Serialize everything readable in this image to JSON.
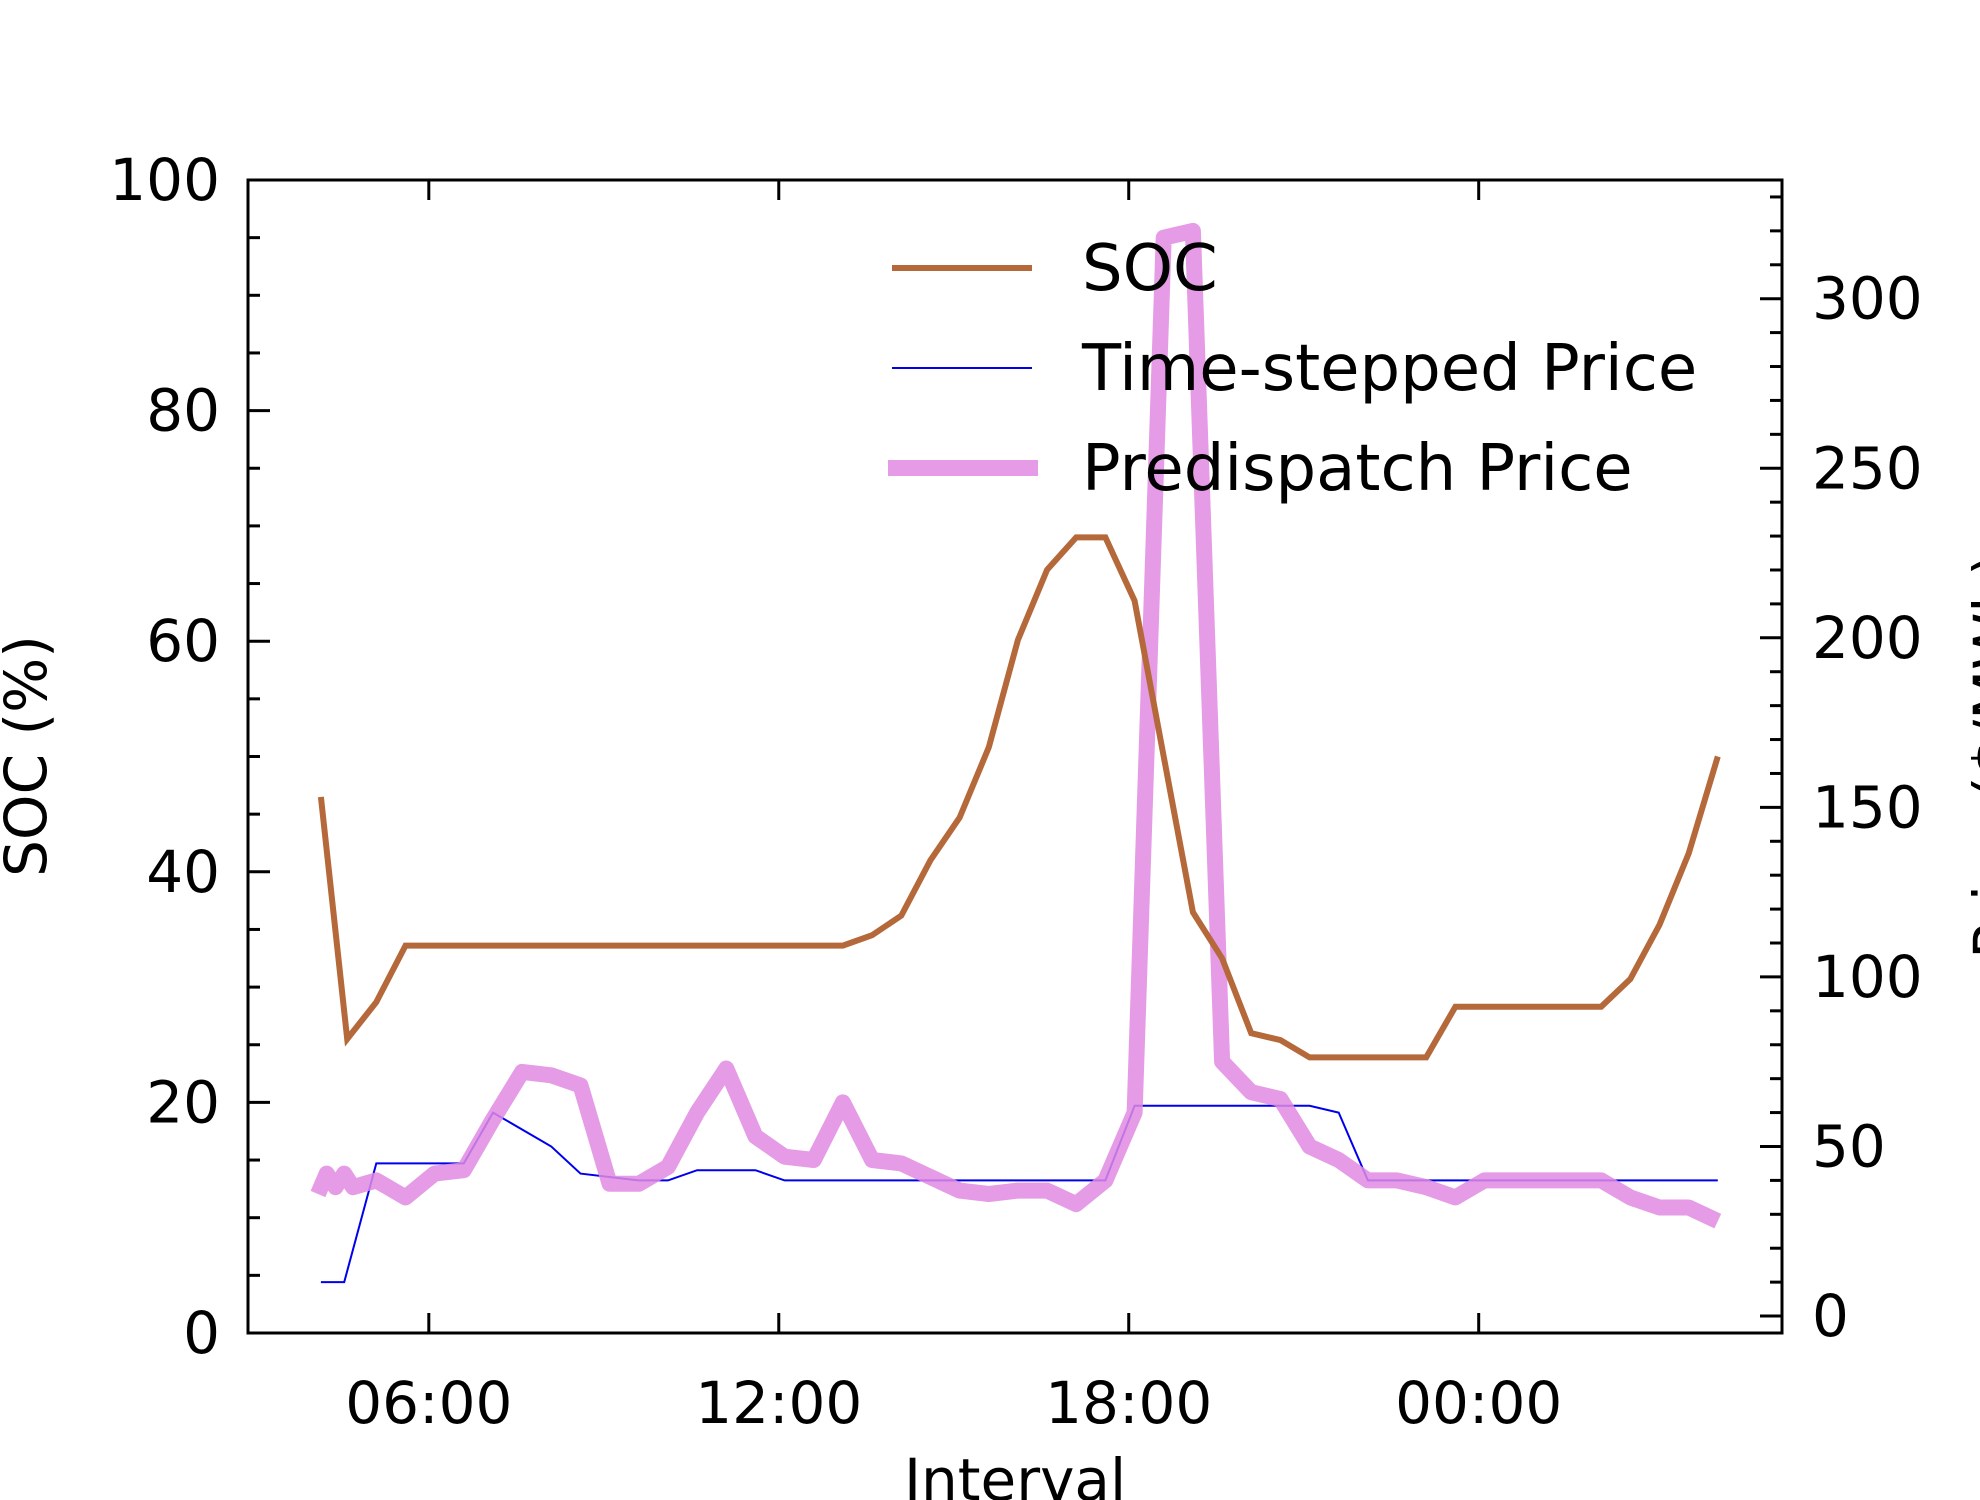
{
  "chart_data": {
    "type": "line",
    "title": "",
    "xlabel": "Interval",
    "ylabel_left": "SOC (%)",
    "ylabel_right": "Price ($/MWh)",
    "x_unit": "hours from 00:00 of day 1",
    "xlim": [
      2.9,
      29.2
    ],
    "ylim_left": [
      0,
      100
    ],
    "ylim_right": [
      -5,
      335
    ],
    "x_ticks": [
      {
        "x": 6,
        "label": "06:00"
      },
      {
        "x": 12,
        "label": "12:00"
      },
      {
        "x": 18,
        "label": "18:00"
      },
      {
        "x": 24,
        "label": "00:00"
      }
    ],
    "y_left_ticks": [
      0,
      20,
      40,
      60,
      80,
      100
    ],
    "y_right_ticks": [
      0,
      50,
      100,
      150,
      200,
      250,
      300
    ],
    "grid": false,
    "legend_position": "top-right",
    "series": [
      {
        "name": "SOC",
        "axis": "left",
        "color": "#b5693a",
        "values": [
          [
            4.15,
            46.5
          ],
          [
            4.6,
            25.5
          ],
          [
            5.1,
            28.7
          ],
          [
            5.6,
            33.6
          ],
          [
            13.1,
            33.6
          ],
          [
            13.6,
            34.5
          ],
          [
            14.1,
            36.2
          ],
          [
            14.6,
            41.0
          ],
          [
            15.1,
            44.7
          ],
          [
            15.6,
            50.8
          ],
          [
            16.1,
            60.1
          ],
          [
            16.6,
            66.2
          ],
          [
            17.1,
            69.0
          ],
          [
            17.6,
            69.0
          ],
          [
            18.1,
            63.5
          ],
          [
            18.6,
            50.0
          ],
          [
            19.1,
            36.5
          ],
          [
            19.6,
            32.5
          ],
          [
            20.1,
            26.0
          ],
          [
            20.6,
            25.4
          ],
          [
            21.1,
            23.9
          ],
          [
            23.1,
            23.9
          ],
          [
            23.6,
            28.3
          ],
          [
            26.1,
            28.3
          ],
          [
            26.6,
            30.7
          ],
          [
            27.1,
            35.4
          ],
          [
            27.6,
            41.6
          ],
          [
            28.1,
            50.0
          ]
        ]
      },
      {
        "name": "Time-stepped Price",
        "axis": "right",
        "color": "#0000ee",
        "values": [
          [
            4.15,
            10
          ],
          [
            4.55,
            10
          ],
          [
            5.1,
            45
          ],
          [
            6.6,
            45
          ],
          [
            7.1,
            60
          ],
          [
            8.1,
            50
          ],
          [
            8.6,
            42
          ],
          [
            9.6,
            40
          ],
          [
            10.1,
            40
          ],
          [
            10.6,
            43
          ],
          [
            11.6,
            43
          ],
          [
            12.1,
            40
          ],
          [
            17.6,
            40
          ],
          [
            18.1,
            62
          ],
          [
            21.1,
            62
          ],
          [
            21.6,
            60
          ],
          [
            22.1,
            40
          ],
          [
            28.1,
            40
          ]
        ]
      },
      {
        "name": "Predispatch Price",
        "axis": "right",
        "color": "#e08ae0",
        "values": [
          [
            4.1,
            36
          ],
          [
            4.25,
            42
          ],
          [
            4.4,
            38
          ],
          [
            4.55,
            42
          ],
          [
            4.7,
            38
          ],
          [
            5.1,
            40
          ],
          [
            5.6,
            35
          ],
          [
            6.1,
            42
          ],
          [
            6.6,
            43
          ],
          [
            7.1,
            58
          ],
          [
            7.6,
            72
          ],
          [
            8.1,
            71
          ],
          [
            8.6,
            68
          ],
          [
            9.1,
            39
          ],
          [
            9.6,
            39
          ],
          [
            10.1,
            44
          ],
          [
            10.6,
            60
          ],
          [
            11.1,
            73
          ],
          [
            11.6,
            53
          ],
          [
            12.1,
            47
          ],
          [
            12.6,
            46
          ],
          [
            13.1,
            63
          ],
          [
            13.6,
            46
          ],
          [
            14.1,
            45
          ],
          [
            14.6,
            41
          ],
          [
            15.1,
            37
          ],
          [
            15.6,
            36
          ],
          [
            16.1,
            37
          ],
          [
            16.6,
            37
          ],
          [
            17.1,
            33
          ],
          [
            17.6,
            40
          ],
          [
            18.1,
            60
          ],
          [
            18.6,
            318
          ],
          [
            19.1,
            320
          ],
          [
            19.6,
            75
          ],
          [
            20.1,
            66
          ],
          [
            20.6,
            64
          ],
          [
            21.1,
            50
          ],
          [
            21.6,
            46
          ],
          [
            22.1,
            40
          ],
          [
            22.6,
            40
          ],
          [
            23.1,
            38
          ],
          [
            23.6,
            35
          ],
          [
            24.1,
            40
          ],
          [
            26.1,
            40
          ],
          [
            26.6,
            35
          ],
          [
            27.1,
            32
          ],
          [
            27.6,
            32
          ],
          [
            28.1,
            28
          ]
        ]
      }
    ]
  }
}
